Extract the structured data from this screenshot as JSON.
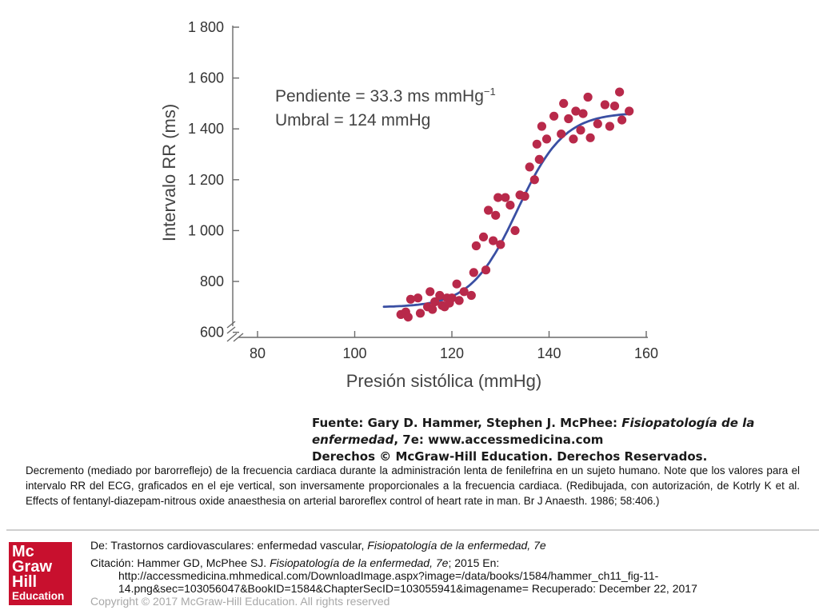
{
  "chart_data": {
    "type": "scatter",
    "xlabel": "Presión sistólica (mmHg)",
    "ylabel": "Intervalo RR (ms)",
    "xlim": [
      80,
      160
    ],
    "ylim": [
      580,
      1800
    ],
    "x_ticks": [
      80,
      100,
      120,
      140,
      160
    ],
    "x_tick_labels": [
      "80",
      "100",
      "120",
      "140",
      "160"
    ],
    "y_ticks": [
      600,
      800,
      1000,
      1200,
      1400,
      1600,
      1800
    ],
    "y_tick_labels": [
      "600",
      "800",
      "1 000",
      "1 200",
      "1 400",
      "1 600",
      "1 800"
    ],
    "axis_break": true,
    "grid": false,
    "annotations": [
      "Pendiente = 33.3 ms mmHg",
      "Umbral = 124 mmHg"
    ],
    "annotation_superscript": "−1",
    "points_color": "#b8294a",
    "curve_color": "#3a4fa3",
    "points": [
      [
        109.5,
        670
      ],
      [
        110.5,
        680
      ],
      [
        111,
        660
      ],
      [
        111.5,
        730
      ],
      [
        113,
        735
      ],
      [
        113.5,
        675
      ],
      [
        115,
        700
      ],
      [
        115.5,
        760
      ],
      [
        116,
        690
      ],
      [
        116.5,
        720
      ],
      [
        117.5,
        745
      ],
      [
        118,
        705
      ],
      [
        118.5,
        700
      ],
      [
        119,
        735
      ],
      [
        119.5,
        715
      ],
      [
        120,
        735
      ],
      [
        121,
        790
      ],
      [
        121.5,
        725
      ],
      [
        122.5,
        760
      ],
      [
        124,
        745
      ],
      [
        124.5,
        835
      ],
      [
        125,
        940
      ],
      [
        126.5,
        975
      ],
      [
        127,
        845
      ],
      [
        127.5,
        1080
      ],
      [
        128.5,
        960
      ],
      [
        129,
        1060
      ],
      [
        129.5,
        1130
      ],
      [
        130,
        945
      ],
      [
        131,
        1130
      ],
      [
        132,
        1100
      ],
      [
        133,
        1000
      ],
      [
        134,
        1140
      ],
      [
        135,
        1135
      ],
      [
        136,
        1250
      ],
      [
        137,
        1200
      ],
      [
        137.5,
        1340
      ],
      [
        138,
        1280
      ],
      [
        138.5,
        1410
      ],
      [
        139.5,
        1360
      ],
      [
        141,
        1450
      ],
      [
        142.5,
        1380
      ],
      [
        143,
        1500
      ],
      [
        144,
        1440
      ],
      [
        145,
        1360
      ],
      [
        145.5,
        1470
      ],
      [
        146.5,
        1395
      ],
      [
        147,
        1460
      ],
      [
        148,
        1525
      ],
      [
        148.5,
        1365
      ],
      [
        150,
        1420
      ],
      [
        151.5,
        1495
      ],
      [
        152.5,
        1410
      ],
      [
        153.5,
        1490
      ],
      [
        154.5,
        1545
      ],
      [
        155,
        1435
      ],
      [
        156.5,
        1470
      ]
    ],
    "fit_curve": {
      "model": "logistic",
      "min": 698,
      "max": 1465,
      "midpoint": 133.5,
      "scale": 4.8,
      "x_range": [
        106,
        156
      ]
    }
  },
  "source": {
    "line1_prefix": "Fuente: Gary D. Hammer, Stephen J. McPhee: ",
    "line1_italic": "Fisiopatología de la",
    "line2_italic": "enfermedad",
    "line2_rest": ", 7e: www.accessmedicina.com",
    "line3": "Derechos © McGraw-Hill Education. Derechos Reservados."
  },
  "caption": "Decremento (mediado por barorreflejo) de la frecuencia cardiaca durante la administración lenta de fenilefrina en un sujeto humano. Note que los valores para el intervalo RR del ECG, graficados en el eje vertical, son inversamente proporcionales a la frecuencia cardiaca. (Redibujada, con autorización, de Kotrly K et al. Effects of fentanyl-diazepam-nitrous oxide anaesthesia on arterial baroreflex control of heart rate in man. Br J Anaesth. 1986; 58:406.)",
  "logo": {
    "line1": "Mc",
    "line2": "Graw",
    "line3": "Hill",
    "line4": "Education"
  },
  "footer": {
    "de_prefix": "De: Trastornos cardiovasculares: enfermedad vascular, ",
    "de_italic": "Fisiopatología de la enfermedad, 7e",
    "cit_prefix": "Citación: Hammer GD, McPhee SJ. ",
    "cit_italic": "Fisiopatología de la enfermedad, 7e",
    "cit_rest": "; 2015 En:",
    "url_line1": "http://accessmedicina.mhmedical.com/DownloadImage.aspx?image=/data/books/1584/hammer_ch11_fig-11-",
    "url_line2": "14.png&sec=103056047&BookID=1584&ChapterSecID=103055941&imagename= Recuperado: December 22, 2017",
    "copyright": "Copyright © 2017 McGraw-Hill Education. All rights reserved"
  }
}
